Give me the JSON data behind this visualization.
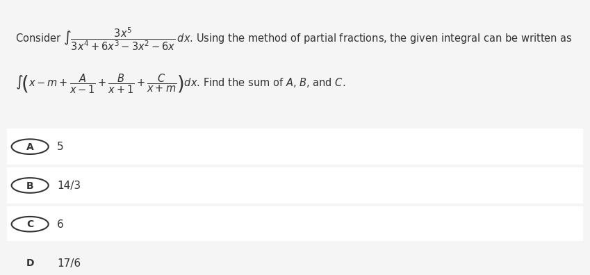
{
  "bg_color": "#f5f5f5",
  "white_color": "#ffffff",
  "text_color": "#333333",
  "circle_color": "#333333",
  "title_line1": "Consider $\\int \\dfrac{3x^5}{3x^4+6x^3-3x^2-6x}\\,dx$. Using the method of partial fractions, the given integral can be written as",
  "title_line2": "$\\int\\!\\left(x-m+\\dfrac{A}{x-1}+\\dfrac{B}{x+1}+\\dfrac{C}{x+m}\\right)dx$. Find the sum of $A$, $B$, and $C$.",
  "options": [
    {
      "label": "A",
      "value": "5"
    },
    {
      "label": "B",
      "value": "14/3"
    },
    {
      "label": "C",
      "value": "6"
    },
    {
      "label": "D",
      "value": "17/6"
    }
  ],
  "option_bg": "#f0f0f0",
  "option_bg_alt": "#e8e8e8"
}
